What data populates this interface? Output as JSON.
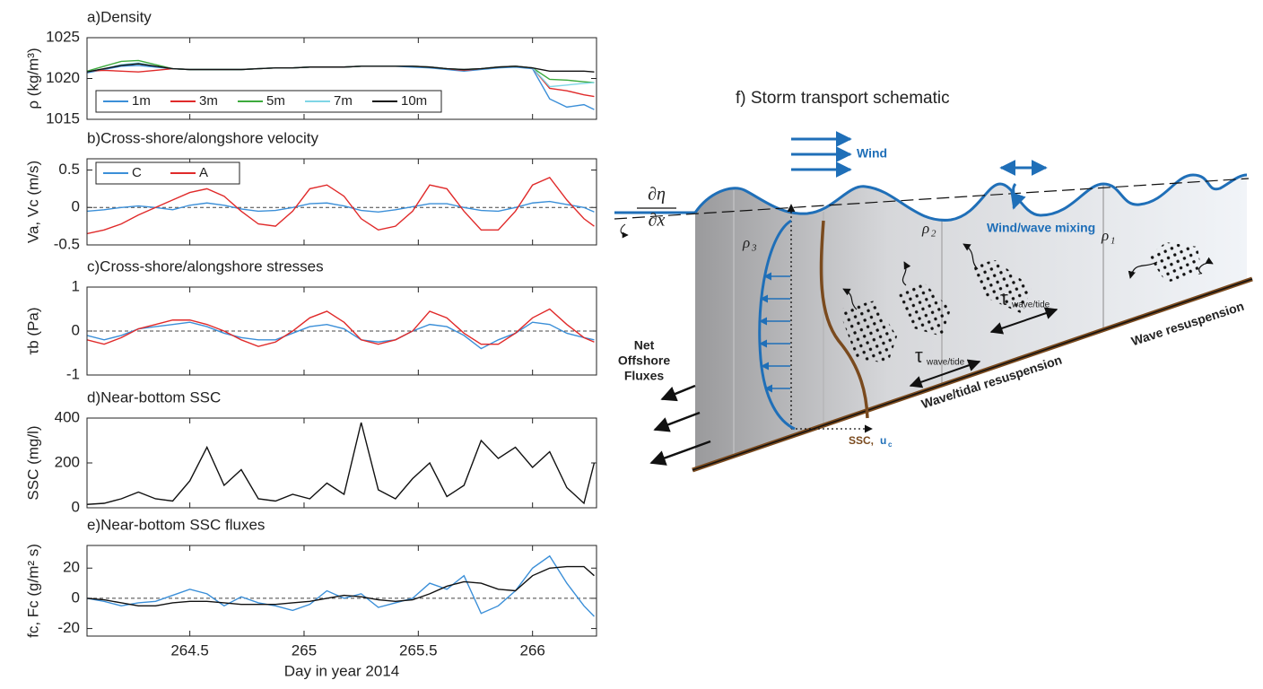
{
  "chart_data": [
    {
      "type": "line",
      "title": "a)Density",
      "ylabel": "ρ (kg/m³)",
      "x": [
        264.05,
        264.125,
        264.2,
        264.275,
        264.35,
        264.425,
        264.5,
        264.575,
        264.65,
        264.725,
        264.8,
        264.875,
        264.95,
        265.025,
        265.1,
        265.175,
        265.25,
        265.325,
        265.4,
        265.475,
        265.55,
        265.625,
        265.7,
        265.775,
        265.85,
        265.925,
        266.0,
        266.075,
        266.15,
        266.225,
        266.27
      ],
      "xlim": [
        264.05,
        266.28
      ],
      "xticks": [
        264.5,
        265,
        265.5,
        266
      ],
      "show_xtick_labels": false,
      "ylim": [
        1015,
        1025
      ],
      "yticks": [
        1015,
        1020,
        1025
      ],
      "legend": "lower left",
      "legend_layout": "horizontal",
      "series": [
        {
          "name": "1m",
          "color": "#3b8fd8",
          "values": [
            1020.7,
            1021.1,
            1021.5,
            1021.6,
            1021.4,
            1021.2,
            1021.1,
            1021.1,
            1021.1,
            1021.1,
            1021.2,
            1021.3,
            1021.3,
            1021.4,
            1021.4,
            1021.4,
            1021.5,
            1021.5,
            1021.5,
            1021.4,
            1021.3,
            1021.1,
            1020.9,
            1021.1,
            1021.3,
            1021.4,
            1021.2,
            1017.5,
            1016.5,
            1016.8,
            1016.2
          ]
        },
        {
          "name": "3m",
          "color": "#e02a2a",
          "values": [
            1020.9,
            1021.0,
            1020.9,
            1020.8,
            1021.0,
            1021.2,
            1021.1,
            1021.1,
            1021.1,
            1021.1,
            1021.2,
            1021.3,
            1021.3,
            1021.4,
            1021.4,
            1021.4,
            1021.5,
            1021.5,
            1021.5,
            1021.5,
            1021.4,
            1021.2,
            1021.0,
            1021.2,
            1021.4,
            1021.5,
            1021.3,
            1018.8,
            1018.5,
            1018.0,
            1017.8
          ]
        },
        {
          "name": "5m",
          "color": "#3caa3c",
          "values": [
            1020.9,
            1021.5,
            1022.1,
            1022.2,
            1021.7,
            1021.2,
            1021.1,
            1021.1,
            1021.1,
            1021.1,
            1021.2,
            1021.3,
            1021.3,
            1021.4,
            1021.4,
            1021.4,
            1021.5,
            1021.5,
            1021.5,
            1021.5,
            1021.4,
            1021.2,
            1021.1,
            1021.2,
            1021.4,
            1021.5,
            1021.3,
            1019.9,
            1019.8,
            1019.6,
            1019.5
          ]
        },
        {
          "name": "7m",
          "color": "#7fd6e6",
          "values": [
            1020.8,
            1021.2,
            1021.7,
            1021.9,
            1021.5,
            1021.2,
            1021.1,
            1021.1,
            1021.1,
            1021.1,
            1021.2,
            1021.3,
            1021.3,
            1021.4,
            1021.4,
            1021.4,
            1021.5,
            1021.5,
            1021.5,
            1021.5,
            1021.4,
            1021.2,
            1021.1,
            1021.2,
            1021.4,
            1021.5,
            1021.3,
            1019.0,
            1019.2,
            1019.4,
            1019.5
          ]
        },
        {
          "name": "10m",
          "color": "#111111",
          "values": [
            1020.8,
            1021.2,
            1021.6,
            1021.8,
            1021.5,
            1021.2,
            1021.1,
            1021.1,
            1021.1,
            1021.1,
            1021.2,
            1021.3,
            1021.3,
            1021.4,
            1021.4,
            1021.4,
            1021.5,
            1021.5,
            1021.5,
            1021.5,
            1021.4,
            1021.2,
            1021.1,
            1021.2,
            1021.4,
            1021.5,
            1021.3,
            1020.9,
            1020.9,
            1020.9,
            1020.8
          ]
        }
      ]
    },
    {
      "type": "line",
      "title": "b)Cross-shore/alongshore velocity",
      "ylabel": "Va, Vc (m/s)",
      "x": [
        264.05,
        264.125,
        264.2,
        264.275,
        264.35,
        264.425,
        264.5,
        264.575,
        264.65,
        264.725,
        264.8,
        264.875,
        264.95,
        265.025,
        265.1,
        265.175,
        265.25,
        265.325,
        265.4,
        265.475,
        265.55,
        265.625,
        265.7,
        265.775,
        265.85,
        265.925,
        266.0,
        266.075,
        266.15,
        266.225,
        266.27
      ],
      "xlim": [
        264.05,
        266.28
      ],
      "xticks": [
        264.5,
        265,
        265.5,
        266
      ],
      "show_xtick_labels": false,
      "ylim": [
        -0.5,
        0.65
      ],
      "yticks": [
        -0.5,
        0,
        0.5
      ],
      "zero_line": true,
      "legend": "upper left",
      "legend_layout": "horizontal",
      "series": [
        {
          "name": "C",
          "color": "#3b8fd8",
          "values": [
            -0.05,
            -0.03,
            0.0,
            0.02,
            0.0,
            -0.03,
            0.03,
            0.06,
            0.03,
            -0.02,
            -0.05,
            -0.04,
            0.0,
            0.05,
            0.06,
            0.02,
            -0.04,
            -0.06,
            -0.03,
            0.01,
            0.05,
            0.05,
            0.0,
            -0.04,
            -0.05,
            0.0,
            0.06,
            0.08,
            0.04,
            0.0,
            -0.06
          ]
        },
        {
          "name": "A",
          "color": "#e02a2a",
          "values": [
            -0.35,
            -0.3,
            -0.22,
            -0.1,
            0.0,
            0.1,
            0.2,
            0.25,
            0.15,
            -0.05,
            -0.22,
            -0.25,
            -0.05,
            0.25,
            0.3,
            0.15,
            -0.15,
            -0.3,
            -0.25,
            -0.05,
            0.3,
            0.25,
            -0.05,
            -0.3,
            -0.3,
            -0.05,
            0.3,
            0.4,
            0.1,
            -0.15,
            -0.25
          ]
        }
      ]
    },
    {
      "type": "line",
      "title": "c)Cross-shore/alongshore stresses",
      "ylabel": "τb (Pa)",
      "x": [
        264.05,
        264.125,
        264.2,
        264.275,
        264.35,
        264.425,
        264.5,
        264.575,
        264.65,
        264.725,
        264.8,
        264.875,
        264.95,
        265.025,
        265.1,
        265.175,
        265.25,
        265.325,
        265.4,
        265.475,
        265.55,
        265.625,
        265.7,
        265.775,
        265.85,
        265.925,
        266.0,
        266.075,
        266.15,
        266.225,
        266.27
      ],
      "xlim": [
        264.05,
        266.28
      ],
      "xticks": [
        264.5,
        265,
        265.5,
        266
      ],
      "show_xtick_labels": false,
      "ylim": [
        -1,
        1
      ],
      "yticks": [
        -1,
        0,
        1
      ],
      "zero_line": true,
      "series": [
        {
          "color": "#3b8fd8",
          "values": [
            -0.1,
            -0.2,
            -0.1,
            0.05,
            0.1,
            0.15,
            0.2,
            0.1,
            -0.05,
            -0.15,
            -0.2,
            -0.2,
            -0.05,
            0.1,
            0.15,
            0.05,
            -0.2,
            -0.25,
            -0.2,
            0.0,
            0.15,
            0.1,
            -0.1,
            -0.4,
            -0.2,
            -0.05,
            0.2,
            0.15,
            -0.05,
            -0.15,
            -0.2
          ]
        },
        {
          "color": "#e02a2a",
          "values": [
            -0.2,
            -0.3,
            -0.15,
            0.05,
            0.15,
            0.25,
            0.25,
            0.15,
            0.0,
            -0.2,
            -0.35,
            -0.25,
            0.0,
            0.3,
            0.45,
            0.2,
            -0.2,
            -0.3,
            -0.2,
            0.0,
            0.45,
            0.3,
            -0.05,
            -0.3,
            -0.3,
            -0.05,
            0.3,
            0.5,
            0.15,
            -0.15,
            -0.25
          ]
        }
      ]
    },
    {
      "type": "line",
      "title": "d)Near-bottom SSC",
      "ylabel": "SSC (mg/l)",
      "x": [
        264.05,
        264.125,
        264.2,
        264.275,
        264.35,
        264.425,
        264.5,
        264.575,
        264.65,
        264.725,
        264.8,
        264.875,
        264.95,
        265.025,
        265.1,
        265.175,
        265.25,
        265.325,
        265.4,
        265.475,
        265.55,
        265.625,
        265.7,
        265.775,
        265.85,
        265.925,
        266.0,
        266.075,
        266.15,
        266.225,
        266.27
      ],
      "xlim": [
        264.05,
        266.28
      ],
      "xticks": [
        264.5,
        265,
        265.5,
        266
      ],
      "show_xtick_labels": false,
      "ylim": [
        0,
        400
      ],
      "yticks": [
        0,
        200,
        400
      ],
      "series": [
        {
          "color": "#111111",
          "values": [
            15,
            20,
            40,
            70,
            40,
            30,
            120,
            270,
            100,
            170,
            40,
            30,
            60,
            40,
            110,
            60,
            380,
            80,
            40,
            130,
            200,
            50,
            100,
            300,
            220,
            270,
            180,
            250,
            90,
            20,
            200
          ]
        }
      ]
    },
    {
      "type": "line",
      "title": "e)Near-bottom SSC fluxes",
      "ylabel": "fc, Fc (g/m² s)",
      "xlabel": "Day in year 2014",
      "x": [
        264.05,
        264.125,
        264.2,
        264.275,
        264.35,
        264.425,
        264.5,
        264.575,
        264.65,
        264.725,
        264.8,
        264.875,
        264.95,
        265.025,
        265.1,
        265.175,
        265.25,
        265.325,
        265.4,
        265.475,
        265.55,
        265.625,
        265.7,
        265.775,
        265.85,
        265.925,
        266.0,
        266.075,
        266.15,
        266.225,
        266.27
      ],
      "xlim": [
        264.05,
        266.28
      ],
      "xticks": [
        264.5,
        265,
        265.5,
        266
      ],
      "show_xtick_labels": true,
      "ylim": [
        -25,
        35
      ],
      "yticks": [
        -20,
        0,
        20
      ],
      "zero_line": true,
      "series": [
        {
          "color": "#3b8fd8",
          "values": [
            0,
            -2,
            -5,
            -3,
            -2,
            2,
            6,
            3,
            -5,
            1,
            -3,
            -5,
            -8,
            -4,
            5,
            0,
            3,
            -6,
            -3,
            0,
            10,
            6,
            15,
            -10,
            -5,
            5,
            20,
            28,
            10,
            -5,
            -12
          ]
        },
        {
          "color": "#111111",
          "values": [
            0,
            -1,
            -3,
            -5,
            -5,
            -3,
            -2,
            -2,
            -3,
            -4,
            -4,
            -4,
            -3,
            -2,
            0,
            2,
            1,
            -1,
            -2,
            -1,
            3,
            8,
            11,
            10,
            6,
            5,
            15,
            20,
            21,
            21,
            15
          ]
        }
      ]
    }
  ],
  "schematic": {
    "title": "f) Storm transport schematic",
    "wind": "Wind",
    "mixing": "Wind/wave mixing",
    "slope_numerator": "∂η",
    "slope_denominator": "∂x",
    "rho": [
      {
        "symbol": "ρ",
        "subscript": "3"
      },
      {
        "symbol": "ρ",
        "subscript": "2"
      },
      {
        "symbol": "ρ",
        "subscript": "1"
      }
    ],
    "net_flux": [
      "Net",
      "Offshore",
      "Fluxes"
    ],
    "ssc": "SSC,",
    "u_symbol": "u",
    "u_subscript": "c",
    "tau": [
      {
        "symbol": "τ",
        "subscript": "wave/tide"
      },
      {
        "symbol": "τ",
        "subscript": "wave/tide"
      }
    ],
    "tidal_resuspension": "Wave/tidal resuspension",
    "wave_resuspension": "Wave resuspension"
  }
}
